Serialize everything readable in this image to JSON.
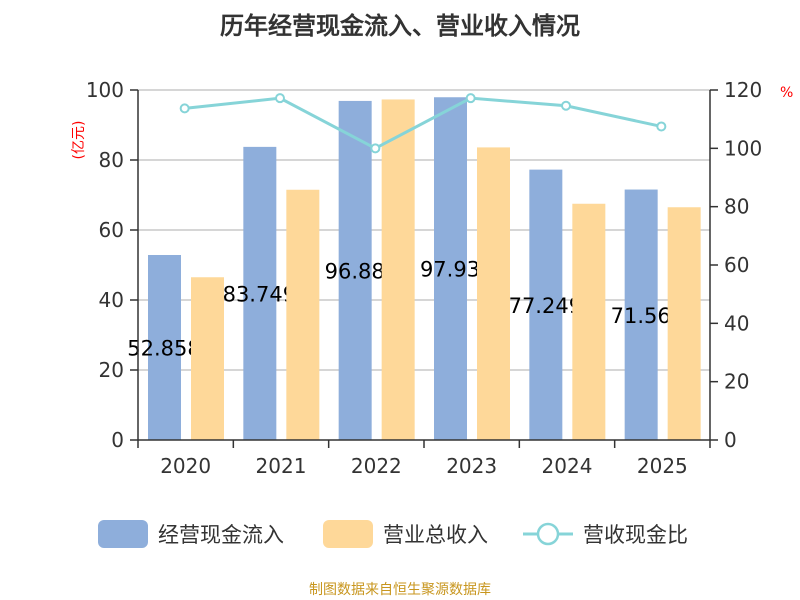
{
  "title": "历年经营现金流入、营业收入情况",
  "source": "制图数据来自恒生聚源数据库",
  "colors": {
    "cash_inflow": "#8eaedb",
    "revenue": "#fed899",
    "ratio": "#86d4d8",
    "axis_unit": "#ff0000"
  },
  "chart_data": {
    "type": "bar",
    "title": "历年经营现金流入、营业收入情况",
    "categories": [
      "2020",
      "2021",
      "2022",
      "2023",
      "2024",
      "2025"
    ],
    "y_left": {
      "label": "(亿元)",
      "range": [
        0,
        100
      ],
      "ticks": [
        "0",
        "20",
        "40",
        "60",
        "80",
        "100"
      ]
    },
    "y_right": {
      "label": "%",
      "range": [
        0,
        120
      ],
      "ticks": [
        "0",
        "20",
        "40",
        "60",
        "80",
        "100",
        "120"
      ]
    },
    "grid": true,
    "legend_position": "bottom",
    "series": [
      {
        "name": "经营现金流入",
        "type": "bar",
        "axis": "left",
        "values": [
          52.858,
          83.749,
          96.88,
          97.93,
          77.249,
          71.56
        ],
        "labels": [
          "52.858",
          "83.749",
          "96.88",
          "97.93",
          "77.249",
          "71.56"
        ]
      },
      {
        "name": "营业总收入",
        "type": "bar",
        "axis": "left",
        "values": [
          46.5,
          71.5,
          97.3,
          83.6,
          67.5,
          66.5
        ]
      },
      {
        "name": "营收现金比",
        "type": "line",
        "axis": "right",
        "values": [
          113.7,
          117.2,
          100.0,
          117.2,
          114.6,
          107.5
        ]
      }
    ]
  }
}
